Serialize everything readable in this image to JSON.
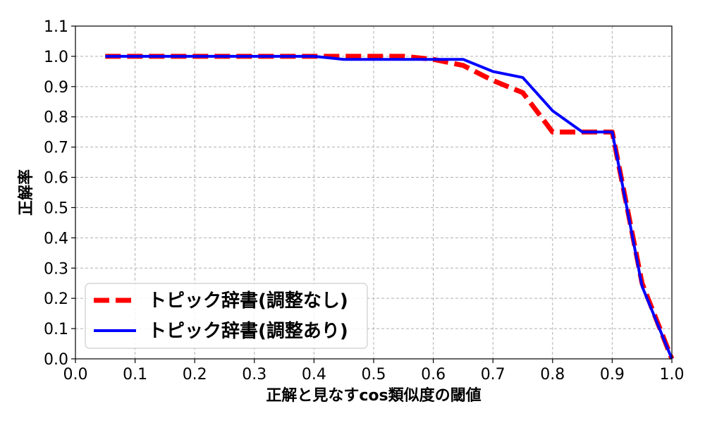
{
  "chart_data": {
    "type": "line",
    "title": "",
    "xlabel": "正解と見なすcos類似度の閾値",
    "ylabel": "正解率",
    "xlim": [
      0.0,
      1.0
    ],
    "ylim": [
      0.0,
      1.1
    ],
    "xticks": [
      "0.0",
      "0.1",
      "0.2",
      "0.3",
      "0.4",
      "0.5",
      "0.6",
      "0.7",
      "0.8",
      "0.9",
      "1.0"
    ],
    "yticks": [
      "0.0",
      "0.1",
      "0.2",
      "0.3",
      "0.4",
      "0.5",
      "0.6",
      "0.7",
      "0.8",
      "0.9",
      "1.0",
      "1.1"
    ],
    "grid": true,
    "legend_position": "lower-left",
    "series": [
      {
        "name": "トピック辞書(調整なし)",
        "color": "#ff0000",
        "style": "dashed",
        "x": [
          0.05,
          0.1,
          0.15,
          0.2,
          0.25,
          0.3,
          0.35,
          0.4,
          0.45,
          0.5,
          0.55,
          0.6,
          0.65,
          0.7,
          0.75,
          0.8,
          0.85,
          0.9,
          0.95,
          1.0
        ],
        "y": [
          1.0,
          1.0,
          1.0,
          1.0,
          1.0,
          1.0,
          1.0,
          1.0,
          1.0,
          1.0,
          1.0,
          0.99,
          0.97,
          0.92,
          0.88,
          0.75,
          0.75,
          0.75,
          0.25,
          0.0
        ]
      },
      {
        "name": "トピック辞書(調整あり)",
        "color": "#0000ff",
        "style": "solid",
        "x": [
          0.05,
          0.1,
          0.15,
          0.2,
          0.25,
          0.3,
          0.35,
          0.4,
          0.45,
          0.5,
          0.55,
          0.6,
          0.65,
          0.7,
          0.75,
          0.8,
          0.85,
          0.9,
          0.95,
          1.0
        ],
        "y": [
          1.0,
          1.0,
          1.0,
          1.0,
          1.0,
          1.0,
          1.0,
          1.0,
          0.99,
          0.99,
          0.99,
          0.99,
          0.99,
          0.95,
          0.93,
          0.82,
          0.75,
          0.75,
          0.24,
          0.0
        ]
      }
    ]
  }
}
